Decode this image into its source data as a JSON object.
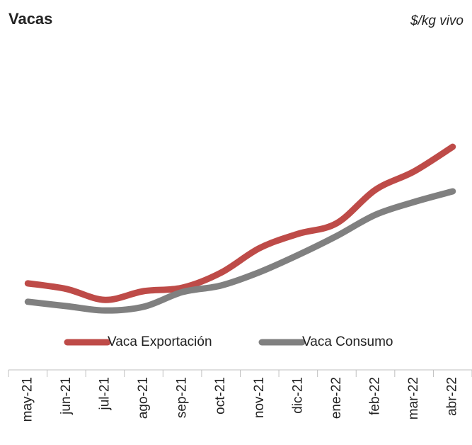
{
  "chart_data": {
    "type": "line",
    "title": "Vacas",
    "subtitle": "$/kg  vivo",
    "categories": [
      "may-21",
      "jun-21",
      "jul-21",
      "ago-21",
      "sep-21",
      "oct-21",
      "nov-21",
      "dic-21",
      "ene-22",
      "feb-22",
      "mar-22",
      "abr-22"
    ],
    "series": [
      {
        "name": "Vaca Exportación",
        "color": "#be4b48",
        "values": [
          27.3,
          25.5,
          22.0,
          24.8,
          25.9,
          30.7,
          38.6,
          43.2,
          46.6,
          57.3,
          63.2,
          71.1
        ]
      },
      {
        "name": "Vaca Consumo",
        "color": "#808080",
        "values": [
          21.4,
          20.0,
          18.6,
          19.8,
          24.5,
          26.6,
          30.9,
          36.4,
          42.5,
          49.3,
          53.4,
          56.8
        ]
      }
    ],
    "ylim": [
      0,
      100
    ],
    "legend": "bottom"
  }
}
